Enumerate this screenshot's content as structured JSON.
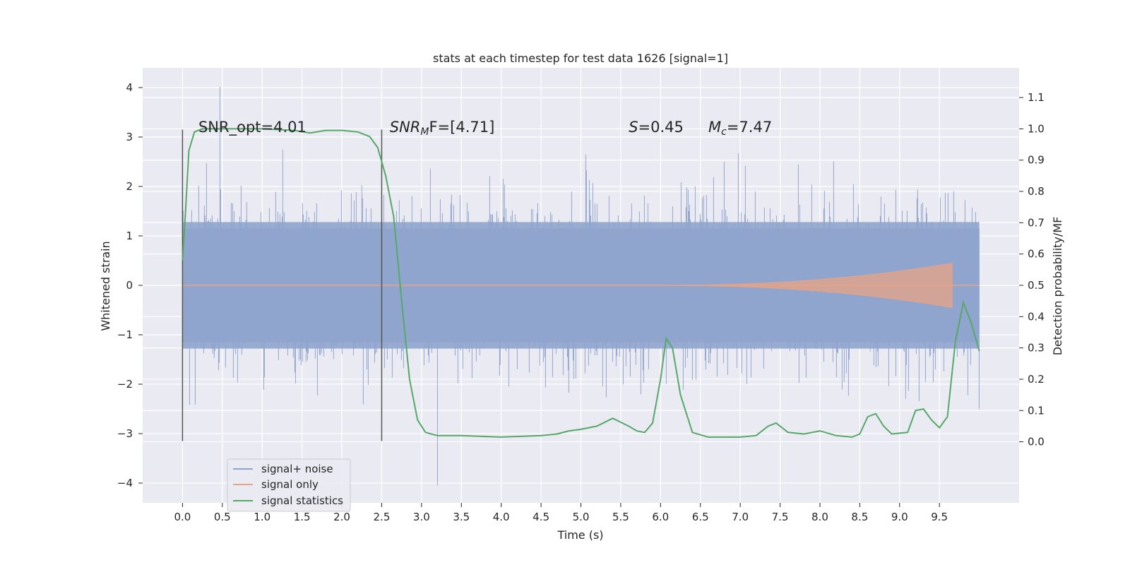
{
  "chart_data": {
    "type": "line",
    "title": "stats at each timestep for test data 1626 [signal=1]",
    "xlabel": "Time (s)",
    "ylabel_left": "Whitened strain",
    "ylabel_right": "Detection probability/MF",
    "xlim": [
      -0.5,
      10.5
    ],
    "ylim_left": [
      -4.4,
      4.4
    ],
    "ylim_right": [
      -0.195,
      1.195
    ],
    "xticks": [
      0.0,
      0.5,
      1.0,
      1.5,
      2.0,
      2.5,
      3.0,
      3.5,
      4.0,
      4.5,
      5.0,
      5.5,
      6.0,
      6.5,
      7.0,
      7.5,
      8.0,
      8.5,
      9.0,
      9.5
    ],
    "xtick_labels": [
      "0.0",
      "0.5",
      "1.0",
      "1.5",
      "2.0",
      "2.5",
      "3.0",
      "3.5",
      "4.0",
      "4.5",
      "5.0",
      "5.5",
      "6.0",
      "6.5",
      "7.0",
      "7.5",
      "8.0",
      "8.5",
      "9.0",
      "9.5"
    ],
    "yticks_left": [
      4,
      3,
      2,
      1,
      0,
      -1,
      -2,
      -3,
      -4
    ],
    "ytick_labels_left": [
      "4",
      "3",
      "2",
      "1",
      "0",
      "−1",
      "−2",
      "−3",
      "−4"
    ],
    "yticks_right": [
      1.1,
      1.0,
      0.9,
      0.8,
      0.7,
      0.6,
      0.5,
      0.4,
      0.3,
      0.2,
      0.1,
      0.0
    ],
    "ytick_labels_right": [
      "1.1",
      "1.0",
      "0.9",
      "0.8",
      "0.7",
      "0.6",
      "0.5",
      "0.4",
      "0.3",
      "0.2",
      "0.1",
      "0.0"
    ],
    "grid": true,
    "legend_position": "lower-left",
    "annotations": {
      "snr_opt": {
        "prefix": "SNR_opt=",
        "value": "4.01",
        "x": 0.2,
        "y": 3.1
      },
      "snr_mf": {
        "base": "SNR",
        "sub": "M",
        "rest": "F=[4.71]",
        "x": 2.6,
        "y": 3.1
      },
      "s_param": {
        "sym": "S",
        "rest": "=0.45",
        "x": 5.6,
        "y": 3.1
      },
      "mc_param": {
        "sym": "M",
        "sub": "c",
        "rest": "=7.47",
        "x": 6.6,
        "y": 3.1
      }
    },
    "vlines": [
      {
        "x": 0.0,
        "ymin": -3.15,
        "ymax": 3.15
      },
      {
        "x": 2.5,
        "ymin": -3.15,
        "ymax": 3.15
      }
    ],
    "noise": {
      "t_start": 0.0,
      "t_end": 10.0,
      "envelope": 1.28,
      "max": 4.02,
      "min": -4.05
    },
    "signal_only": {
      "t_visible_start": 6.0,
      "t_end": 9.67,
      "peak_amplitude": 0.45
    },
    "series": [
      {
        "name": "signal+ noise",
        "color": "#8fa4cc"
      },
      {
        "name": "signal only",
        "color": "#e8a384"
      },
      {
        "name": "signal statistics",
        "color": "#55a868",
        "x": [
          0.0,
          0.03,
          0.08,
          0.15,
          0.25,
          0.5,
          1.0,
          1.4,
          1.6,
          1.8,
          2.0,
          2.2,
          2.35,
          2.45,
          2.55,
          2.65,
          2.75,
          2.85,
          2.95,
          3.05,
          3.2,
          3.5,
          4.0,
          4.5,
          4.7,
          4.85,
          5.0,
          5.2,
          5.4,
          5.6,
          5.7,
          5.8,
          5.9,
          6.0,
          6.07,
          6.15,
          6.25,
          6.4,
          6.6,
          7.0,
          7.2,
          7.35,
          7.45,
          7.6,
          7.8,
          8.0,
          8.2,
          8.4,
          8.5,
          8.6,
          8.7,
          8.8,
          8.9,
          9.1,
          9.2,
          9.3,
          9.4,
          9.5,
          9.6,
          9.7,
          9.8,
          9.9,
          10.0
        ],
        "values": [
          0.58,
          0.7,
          0.93,
          0.99,
          1.0,
          1.0,
          1.0,
          0.995,
          0.987,
          0.995,
          0.995,
          0.99,
          0.975,
          0.94,
          0.85,
          0.72,
          0.45,
          0.2,
          0.07,
          0.03,
          0.02,
          0.02,
          0.015,
          0.02,
          0.025,
          0.035,
          0.04,
          0.05,
          0.075,
          0.05,
          0.035,
          0.03,
          0.06,
          0.2,
          0.33,
          0.3,
          0.15,
          0.03,
          0.015,
          0.015,
          0.02,
          0.05,
          0.06,
          0.03,
          0.025,
          0.035,
          0.02,
          0.015,
          0.025,
          0.08,
          0.09,
          0.05,
          0.025,
          0.03,
          0.1,
          0.105,
          0.07,
          0.045,
          0.08,
          0.32,
          0.445,
          0.38,
          0.29
        ]
      }
    ]
  }
}
